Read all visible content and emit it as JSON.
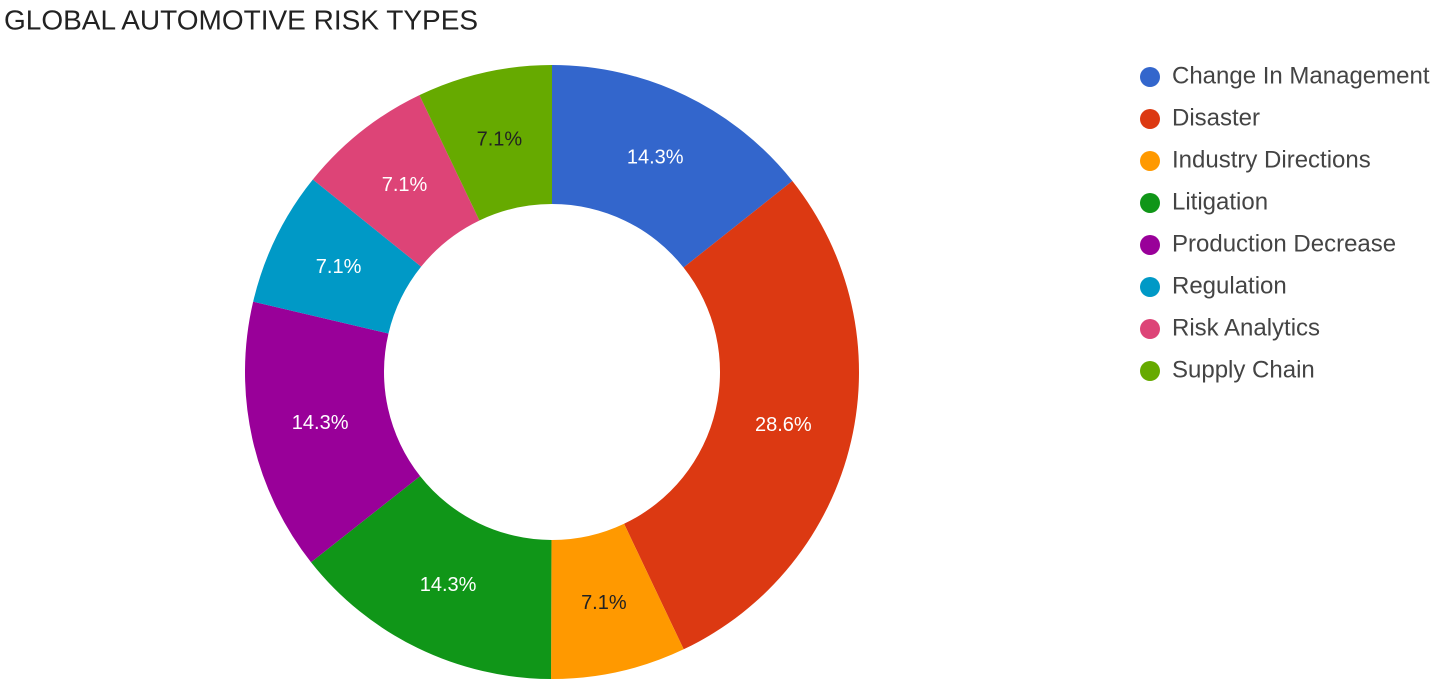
{
  "chart_data": {
    "type": "donut",
    "title": "GLOBAL AUTOMOTIVE RISK TYPES",
    "categories": [
      "Change In Management",
      "Disaster",
      "Industry Directions",
      "Litigation",
      "Production Decrease",
      "Regulation",
      "Risk Analytics",
      "Supply Chain"
    ],
    "values": [
      14.3,
      28.6,
      7.1,
      14.3,
      14.3,
      7.1,
      7.1,
      7.1
    ],
    "value_labels": [
      "14.3%",
      "28.6%",
      "7.1%",
      "14.3%",
      "14.3%",
      "7.1%",
      "7.1%",
      "7.1%"
    ],
    "colors": [
      "#3366cc",
      "#dc3912",
      "#ff9900",
      "#109618",
      "#990099",
      "#0099c6",
      "#dd4477",
      "#66aa00"
    ],
    "legend": "right"
  }
}
